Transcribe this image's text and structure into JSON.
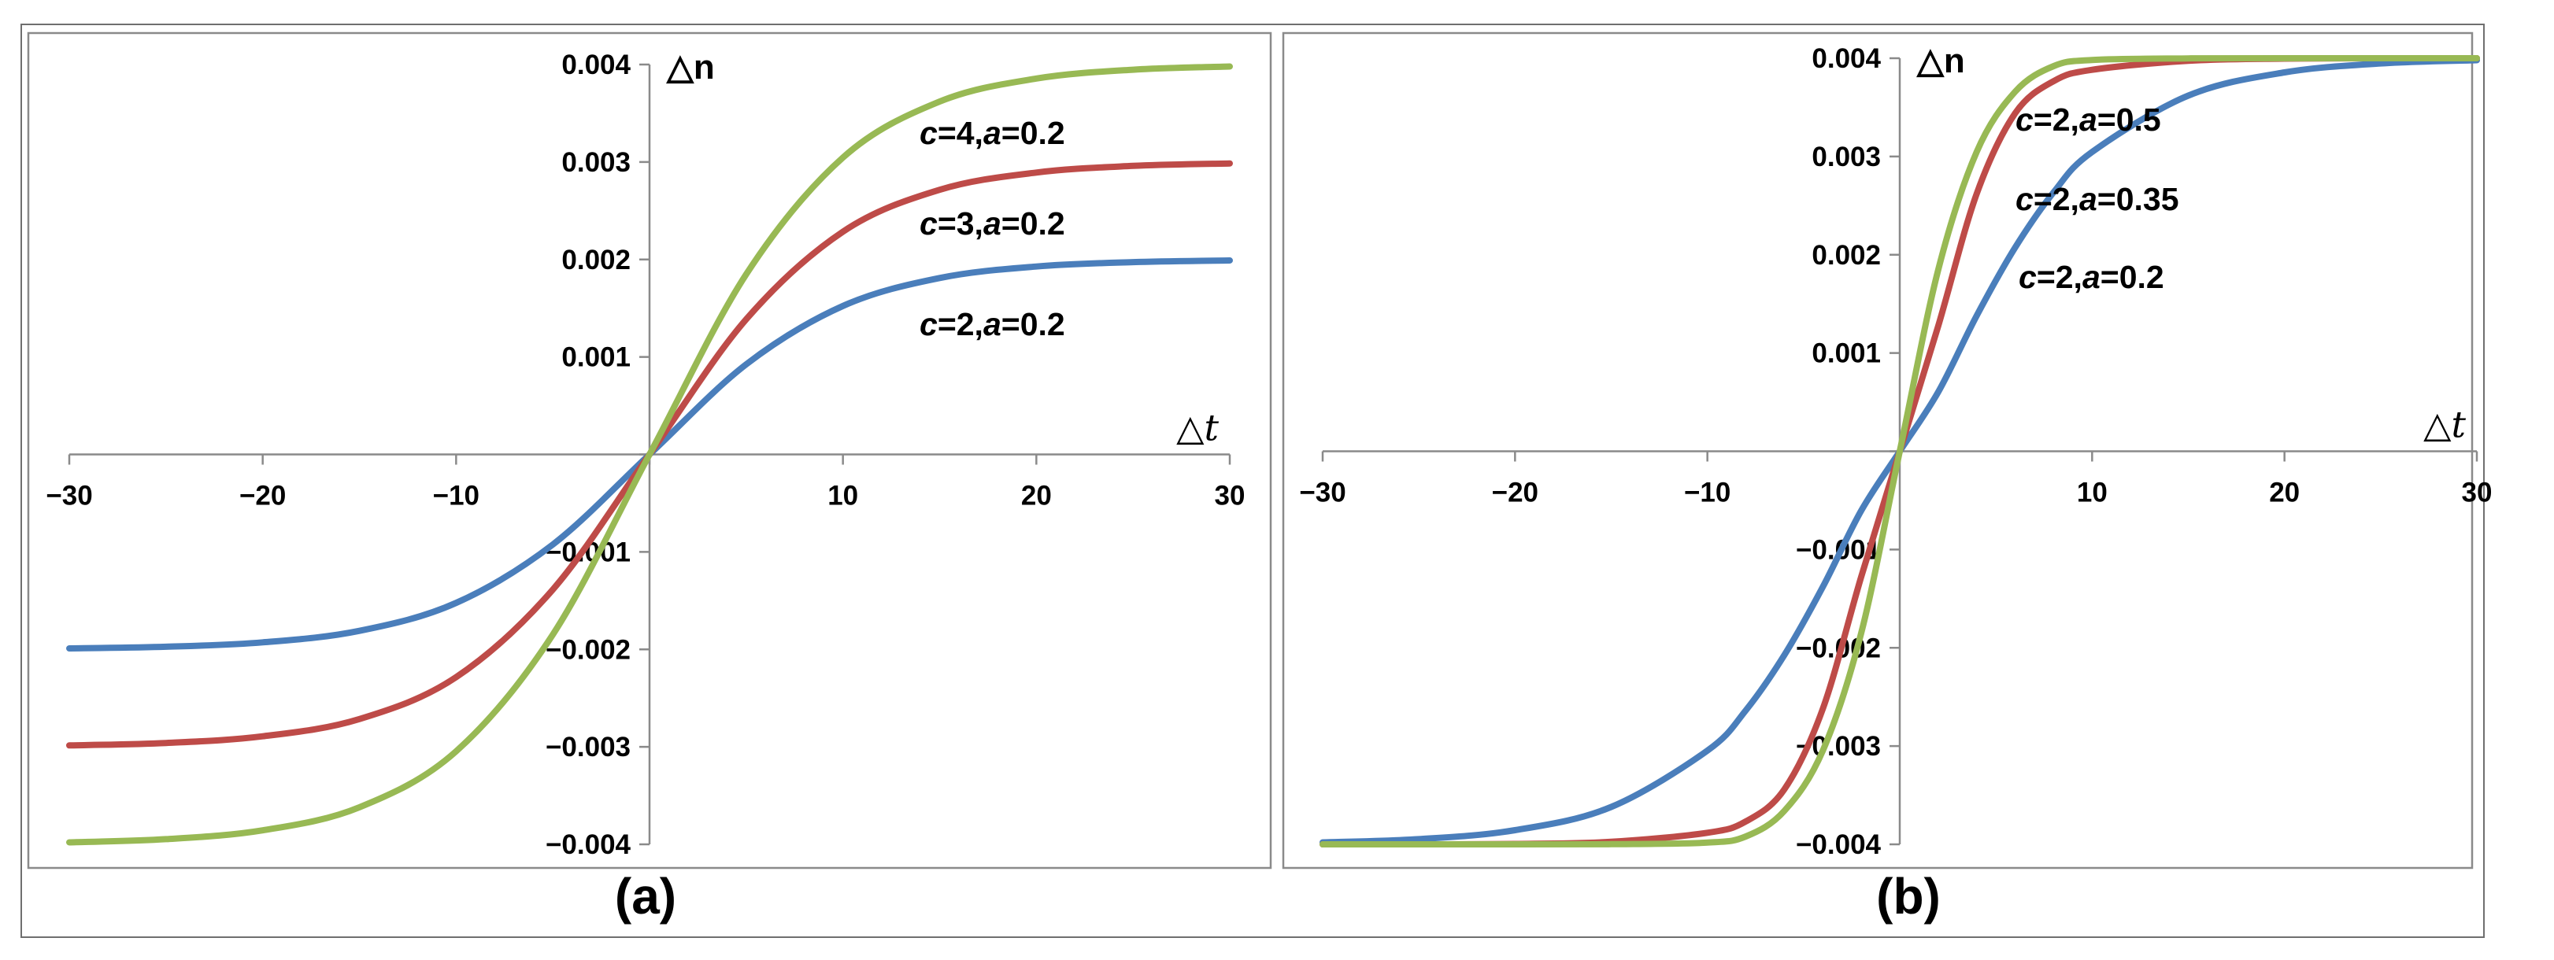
{
  "panels": [
    {
      "id": "a",
      "label": "(a)",
      "chart_data": {
        "type": "line",
        "xlabel": "△t",
        "ylabel": "△n",
        "xlim": [
          -30,
          30
        ],
        "ylim": [
          -0.004,
          0.004
        ],
        "x_ticks": [
          -30,
          -20,
          -10,
          10,
          20,
          30
        ],
        "x_tick_labels": [
          "−30",
          "−20",
          "−10",
          "10",
          "20",
          "30"
        ],
        "y_ticks": [
          0.004,
          0.003,
          0.002,
          0.001,
          -0.001,
          -0.002,
          -0.003,
          -0.004
        ],
        "y_tick_labels": [
          "0.004",
          "0.003",
          "0.002",
          "0.001",
          "−0.001",
          "−0.002",
          "−0.003",
          "−0.004"
        ],
        "grid": false,
        "x": [
          -30,
          -25,
          -20,
          -15,
          -10,
          -5,
          0,
          5,
          10,
          15,
          20,
          25,
          30
        ],
        "series": [
          {
            "name": "c=2,a=0.2",
            "c": "2",
            "a": "0.2",
            "color": "#4a7ebb",
            "values": [
              -0.00199,
              -0.001973,
              -0.001928,
              -0.00181,
              -0.001523,
              -0.000924,
              0,
              0.000924,
              0.001523,
              0.00181,
              0.001928,
              0.001973,
              0.00199
            ]
          },
          {
            "name": "c=3,a=0.2",
            "c": "3",
            "a": "0.2",
            "color": "#be4b48",
            "values": [
              -0.002985,
              -0.00296,
              -0.002892,
              -0.002715,
              -0.002285,
              -0.001386,
              0,
              0.001386,
              0.002285,
              0.002715,
              0.002892,
              0.00296,
              0.002985
            ]
          },
          {
            "name": "c=4,a=0.2",
            "c": "4",
            "a": "0.2",
            "color": "#98b954",
            "values": [
              -0.00398,
              -0.003947,
              -0.003856,
              -0.00362,
              -0.003046,
              -0.001848,
              0,
              0.001848,
              0.003046,
              0.00362,
              0.003856,
              0.003947,
              0.00398
            ]
          }
        ]
      }
    },
    {
      "id": "b",
      "label": "(b)",
      "chart_data": {
        "type": "line",
        "xlabel": "△t",
        "ylabel": "△n",
        "xlim": [
          -30,
          30
        ],
        "ylim": [
          -0.004,
          0.004
        ],
        "x_ticks": [
          -30,
          -20,
          -10,
          10,
          20,
          30
        ],
        "x_tick_labels": [
          "−30",
          "−20",
          "−10",
          "10",
          "20",
          "30"
        ],
        "y_ticks": [
          0.004,
          0.003,
          0.002,
          0.001,
          -0.001,
          -0.002,
          -0.003,
          -0.004
        ],
        "y_tick_labels": [
          "0.004",
          "0.003",
          "0.002",
          "0.001",
          "−0.001",
          "−0.002",
          "−0.003",
          "−0.004"
        ],
        "grid": false,
        "x": [
          -30,
          -25,
          -20,
          -15,
          -10,
          -8,
          -6,
          -4,
          -2,
          0,
          2,
          4,
          6,
          8,
          10,
          15,
          20,
          25,
          30
        ],
        "series": [
          {
            "name": "c=2,a=0.2",
            "c": "2",
            "a": "0.2",
            "color": "#4a7ebb",
            "values": [
              -0.00398,
              -0.003947,
              -0.003856,
              -0.00362,
              -0.003046,
              -0.002636,
              -0.002074,
              -0.00138,
              -0.000604,
              0,
              0.000604,
              0.00138,
              0.002074,
              0.002636,
              0.003046,
              0.00362,
              0.003856,
              0.003947,
              0.00398
            ]
          },
          {
            "name": "c=2,a=0.35",
            "c": "2",
            "a": "0.35",
            "color": "#be4b48",
            "values": [
              -0.004,
              -0.004,
              -0.003996,
              -0.003974,
              -0.003882,
              -0.003767,
              -0.00344,
              -0.00262,
              -0.001276,
              0,
              0.001276,
              0.00262,
              0.00344,
              0.003767,
              0.003882,
              0.003974,
              0.003996,
              0.004,
              0.004
            ]
          },
          {
            "name": "c=2,a=0.5",
            "c": "2",
            "a": "0.5",
            "color": "#98b954",
            "values": [
              -0.004,
              -0.004,
              -0.004,
              -0.003998,
              -0.003982,
              -0.00392,
              -0.00366,
              -0.003046,
              -0.001848,
              0,
              0.001848,
              0.003046,
              0.00366,
              0.00392,
              0.003982,
              0.003998,
              0.004,
              0.004,
              0.004
            ]
          }
        ]
      }
    }
  ]
}
